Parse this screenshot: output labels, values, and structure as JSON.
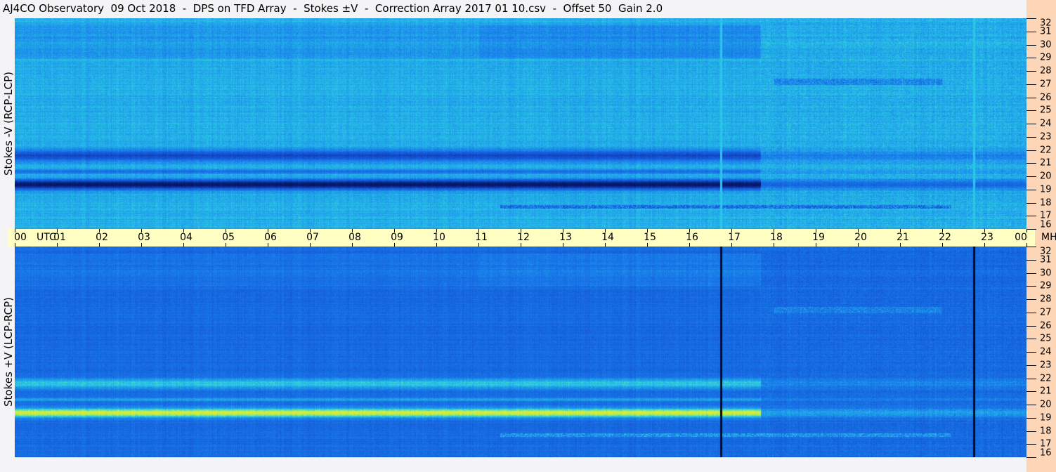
{
  "title": "AJ4CO Observatory  09 Oct 2018  -  DPS on TFD Array  -  Stokes ±V  -  Correction Array 2017 01 10.csv  -  Offset 50  Gain 2.0",
  "chart_data": {
    "type": "heatmap",
    "xlabel": "UTC",
    "ylabel_unit": "MHz",
    "x_ticks": [
      "00",
      "01",
      "02",
      "03",
      "04",
      "05",
      "06",
      "07",
      "08",
      "09",
      "10",
      "11",
      "12",
      "13",
      "14",
      "15",
      "16",
      "17",
      "18",
      "19",
      "20",
      "21",
      "22",
      "23",
      "00"
    ],
    "xlim": [
      0,
      24
    ],
    "y_ticks": [
      "16",
      "17",
      "18",
      "19",
      "20",
      "21",
      "22",
      "23",
      "24",
      "25",
      "26",
      "27",
      "28",
      "29",
      "30",
      "31",
      "32"
    ],
    "ylim": [
      16,
      32
    ],
    "panels": [
      {
        "ylabel": "Stokes -V (RCP-LCP)",
        "colors": {
          "base": "#1a78e0",
          "dark": "#061a5a"
        }
      },
      {
        "ylabel": "Stokes +V (LCP-RCP)",
        "colors": {
          "base": "#1655d0",
          "bright": "#e8f040"
        }
      }
    ],
    "vertical_lines_utc": [
      16.75,
      22.75
    ]
  }
}
